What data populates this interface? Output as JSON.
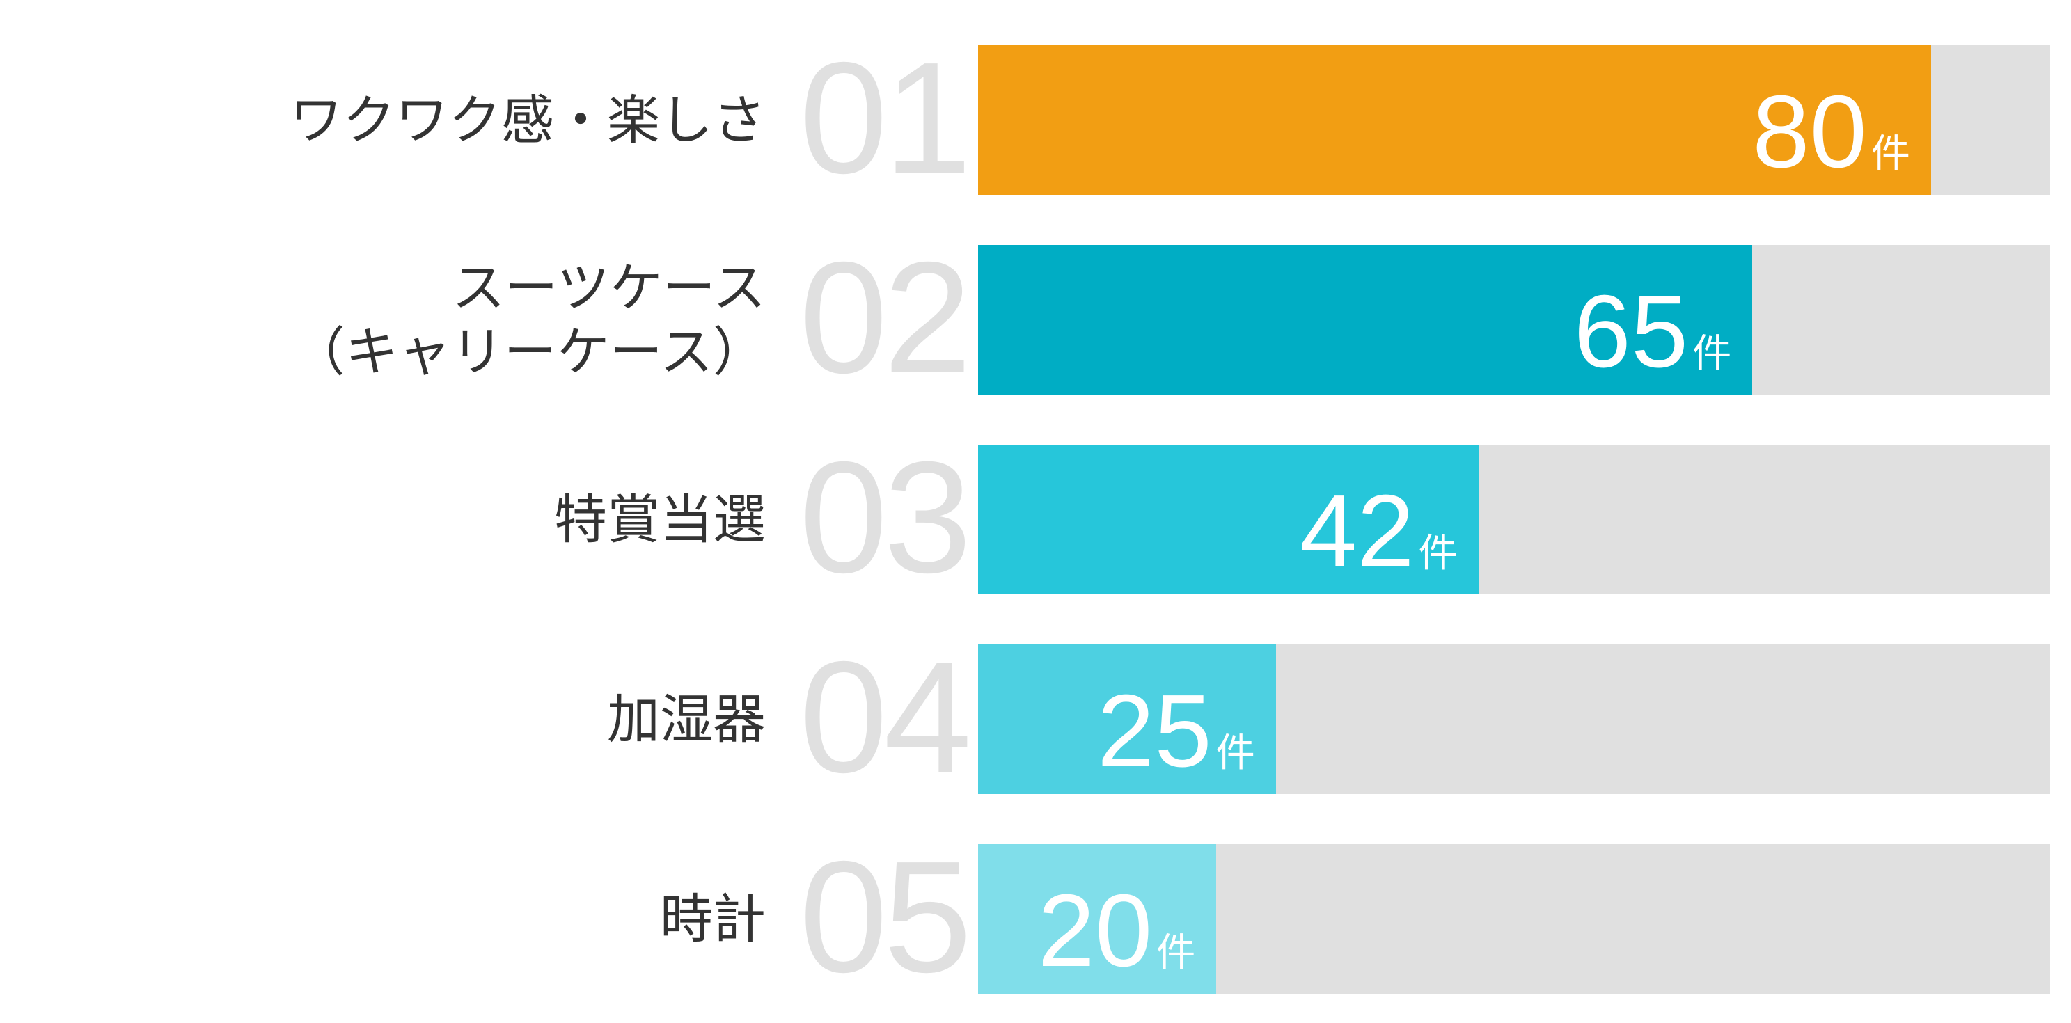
{
  "chart_data": {
    "type": "bar",
    "orientation": "horizontal",
    "xlim": [
      0,
      90
    ],
    "grid": false,
    "unit": "件",
    "ranks": [
      "01",
      "02",
      "03",
      "04",
      "05"
    ],
    "categories": [
      "ワクワク感・楽しさ",
      "スーツケース（キャリーケース）",
      "特賞当選",
      "加湿器",
      "時計"
    ],
    "values": [
      80,
      65,
      42,
      25,
      20
    ],
    "colors": [
      "#f29e13",
      "#00adc4",
      "#26c6da",
      "#4dd0e1",
      "#80deea"
    ],
    "track_color": "#e0e0e0"
  }
}
